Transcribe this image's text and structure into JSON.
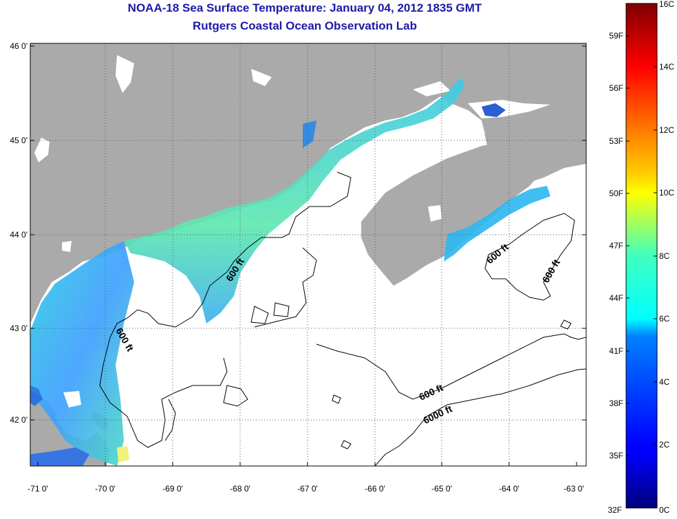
{
  "title": {
    "line1": "NOAA-18 Sea Surface Temperature:  January 04, 2012 1835 GMT",
    "line2": "Rutgers Coastal Ocean Observation Lab"
  },
  "map": {
    "lat_labels": [
      "46 0'",
      "45 0'",
      "44 0'",
      "43 0'",
      "42 0'"
    ],
    "lon_labels": [
      "-71 0'",
      "-70 0'",
      "-69 0'",
      "-68 0'",
      "-67 0'",
      "-66 0'",
      "-65 0'",
      "-64 0'",
      "-63 0'"
    ],
    "lat_range": [
      41.5,
      46.0
    ],
    "lon_range": [
      -71.0,
      -63.0
    ],
    "contour_labels": [
      "600 ft",
      "600 ft",
      "600 ft",
      "600 ft",
      "600 ft",
      "6000 ft"
    ],
    "colors": {
      "land": "#aaaaaa",
      "no_data": "#ffffff",
      "contour": "#000000",
      "grid": "#555555"
    }
  },
  "colorbar": {
    "celsius_labels": [
      "16C",
      "14C",
      "12C",
      "10C",
      "8C",
      "6C",
      "4C",
      "2C",
      "0C"
    ],
    "fahrenheit_labels": [
      "59F",
      "56F",
      "53F",
      "50F",
      "47F",
      "44F",
      "41F",
      "38F",
      "35F",
      "32F"
    ],
    "range_c": [
      0,
      16
    ],
    "scale": "jet"
  }
}
